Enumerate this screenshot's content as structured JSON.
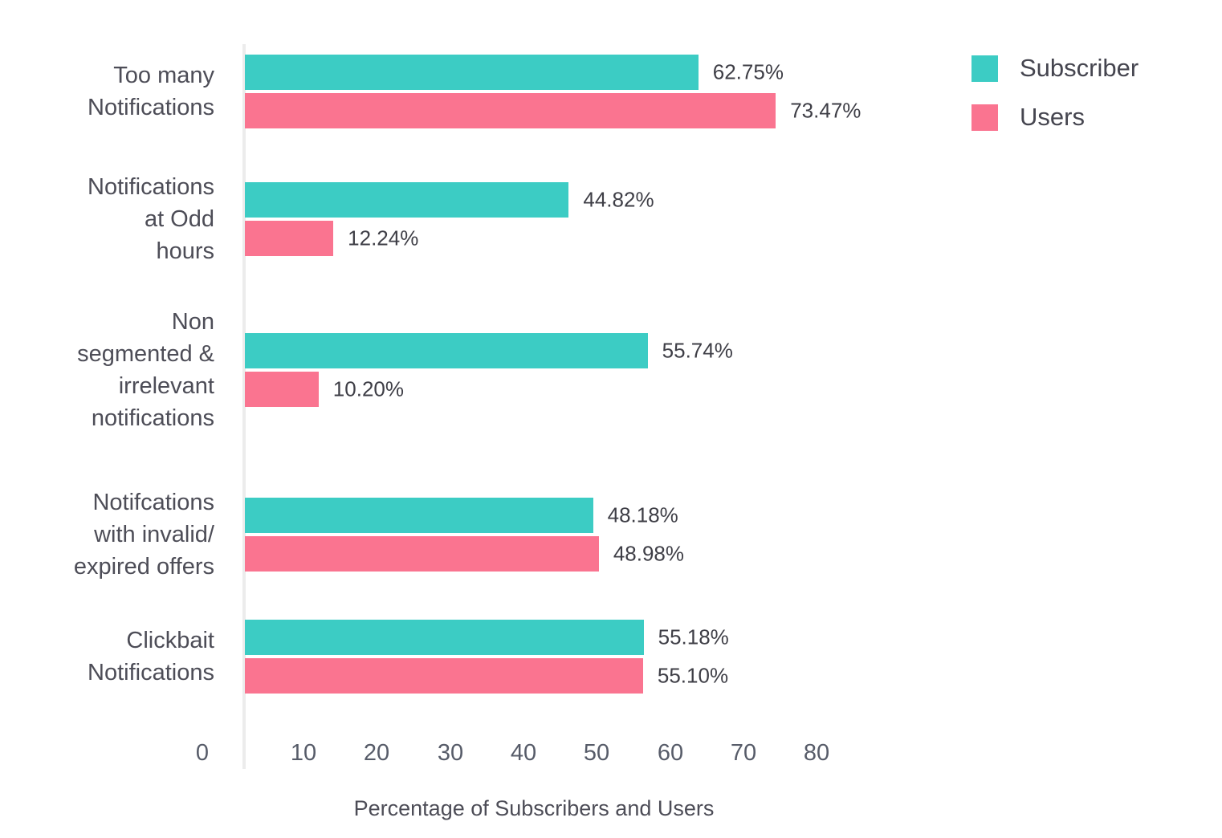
{
  "chart_data": {
    "type": "bar",
    "orientation": "horizontal",
    "title": "",
    "xlabel": "Percentage of Subscribers and Users",
    "ylabel": "",
    "xlim": [
      0,
      80
    ],
    "xticks": [
      0,
      10,
      20,
      30,
      40,
      50,
      60,
      70,
      80
    ],
    "grid": false,
    "legend_position": "top-right",
    "categories": [
      "Too many\nNotifications",
      "Notifications\nat Odd\nhours",
      "Non\nsegmented &\nirrelevant\nnotifications",
      "Notifcations\nwith invalid/\nexpired offers",
      "Clickbait\nNotifications"
    ],
    "series": [
      {
        "name": "Subscriber",
        "color": "#3cccc4",
        "values": [
          62.75,
          44.82,
          55.74,
          48.18,
          55.18
        ],
        "labels": [
          "62.75%",
          "44.82%",
          "55.74%",
          "48.18%",
          "55.18%"
        ]
      },
      {
        "name": "Users",
        "color": "#fa7490",
        "values": [
          73.47,
          12.24,
          10.2,
          48.98,
          55.1
        ],
        "labels": [
          "73.47%",
          "12.24%",
          "10.20%",
          "48.98%",
          "55.10%"
        ]
      }
    ]
  },
  "colors": {
    "axis_line": "#ececec",
    "category_text": "#4d4d57",
    "value_text": "#3e3e46",
    "tick_text": "#575c69",
    "legend_text": "#45454f"
  }
}
